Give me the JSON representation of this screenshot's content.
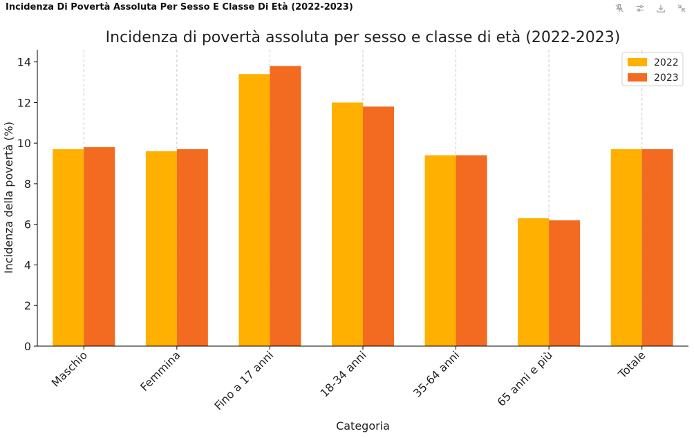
{
  "header": {
    "title": "Incidenza Di Povertà Assoluta Per Sesso E Classe Di Età (2022-2023)",
    "toolbar": [
      {
        "icon": "pin-off-icon"
      },
      {
        "icon": "sliders-icon"
      },
      {
        "icon": "download-icon"
      },
      {
        "icon": "collapse-icon"
      }
    ]
  },
  "colors": {
    "series_2022": "#FFB000",
    "series_2023": "#F26B21",
    "grid": "#C8C8C8",
    "axis": "#000000",
    "toolbar_icon": "#9A9A9A"
  },
  "chart_data": {
    "type": "bar",
    "title": "Incidenza di povertà assoluta per sesso e classe di età (2022-2023)",
    "xlabel": "Categoria",
    "ylabel": "Incidenza della povertà (%)",
    "categories": [
      "Maschio",
      "Femmina",
      "Fino a 17 anni",
      "18-34 anni",
      "35-64 anni",
      "65 anni e più",
      "Totale"
    ],
    "series": [
      {
        "name": "2022",
        "values": [
          9.7,
          9.6,
          13.4,
          12.0,
          9.4,
          6.3,
          9.7
        ]
      },
      {
        "name": "2023",
        "values": [
          9.8,
          9.7,
          13.8,
          11.8,
          9.4,
          6.2,
          9.7
        ]
      }
    ],
    "ylim": [
      0,
      14.6
    ],
    "yticks": [
      0,
      2,
      4,
      6,
      8,
      10,
      12,
      14
    ],
    "grid": "vertical-dashed",
    "legend": "top-right"
  }
}
